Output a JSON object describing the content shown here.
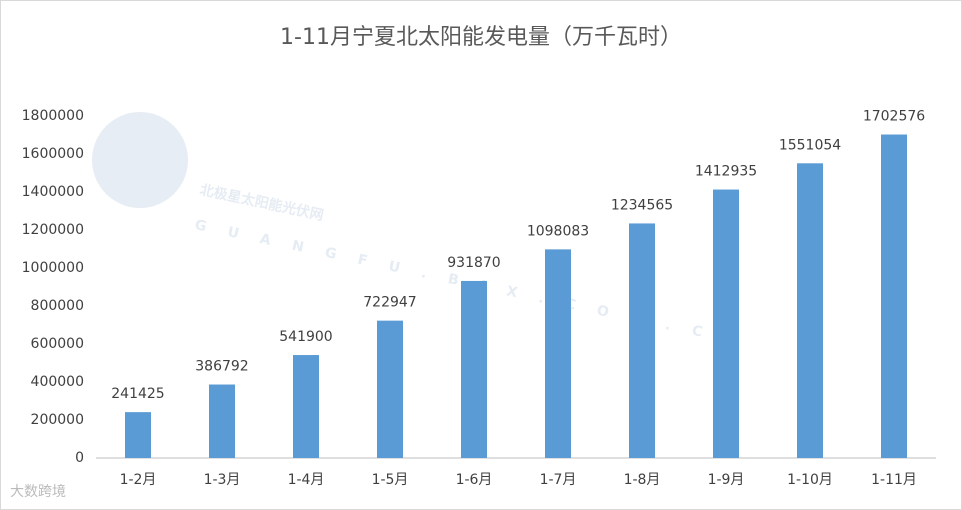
{
  "chart_data": {
    "type": "bar",
    "title": "1-11月宁夏北太阳能发电量（万千瓦时）",
    "categories": [
      "1-2月",
      "1-3月",
      "1-4月",
      "1-5月",
      "1-6月",
      "1-7月",
      "1-8月",
      "1-9月",
      "1-10月",
      "1-11月"
    ],
    "values": [
      241425,
      386792,
      541900,
      722947,
      931870,
      1098083,
      1234565,
      1412935,
      1551054,
      1702576
    ],
    "color": "#5b9bd5",
    "ylim": [
      0,
      1800000
    ],
    "yticks": [
      0,
      200000,
      400000,
      600000,
      800000,
      1000000,
      1200000,
      1400000,
      1600000,
      1800000
    ],
    "grid": false,
    "watermark": "北极星太阳能光伏网",
    "watermark_url": "GUANGFU.BJX.COM.CN",
    "footer_mark": "大数跨境"
  }
}
